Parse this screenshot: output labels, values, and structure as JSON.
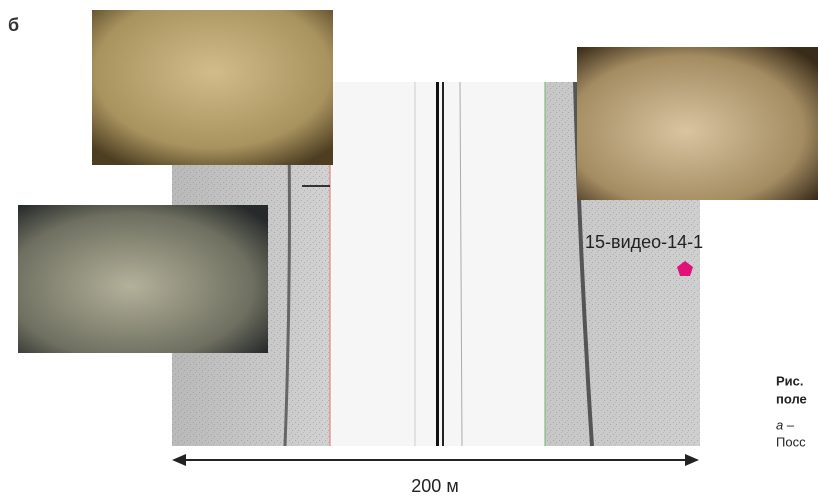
{
  "panel_label": "б",
  "sonar": {
    "target_label": "15-видео-14-1",
    "scale_label": "200 м"
  },
  "caption": {
    "title_line1": "Рис.",
    "title_line2": "поле",
    "line3": "а –",
    "line4": "Посс"
  }
}
